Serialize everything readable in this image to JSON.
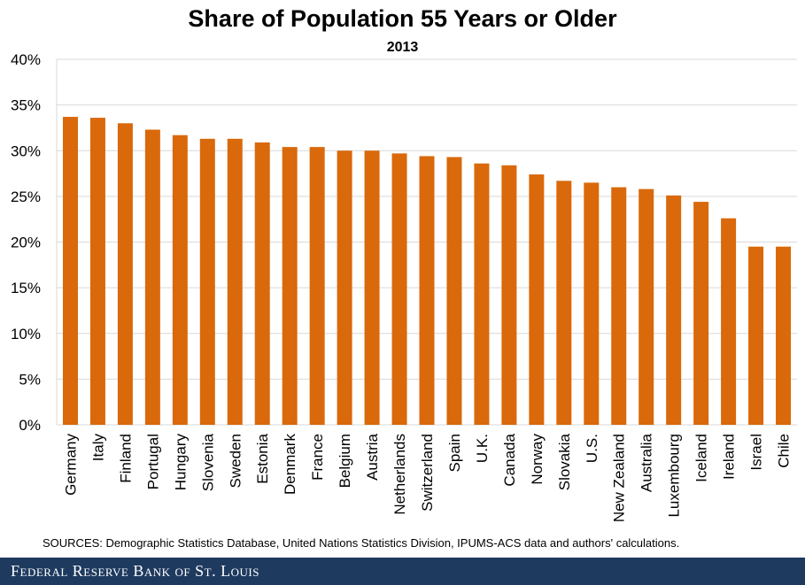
{
  "chart_data": {
    "type": "bar",
    "title": "Share of Population 55 Years or Older",
    "subtitle": "2013",
    "xlabel": "",
    "ylabel": "",
    "ylim": [
      0,
      40
    ],
    "yticks": [
      "0%",
      "5%",
      "10%",
      "15%",
      "20%",
      "25%",
      "30%",
      "35%",
      "40%"
    ],
    "grid": true,
    "categories": [
      "Germany",
      "Italy",
      "Finland",
      "Portugal",
      "Hungary",
      "Slovenia",
      "Sweden",
      "Estonia",
      "Denmark",
      "France",
      "Belgium",
      "Austria",
      "Netherlands",
      "Switzerland",
      "Spain",
      "U.K.",
      "Canada",
      "Norway",
      "Slovakia",
      "U.S.",
      "New Zealand",
      "Australia",
      "Luxembourg",
      "Iceland",
      "Ireland",
      "Israel",
      "Chile"
    ],
    "values": [
      33.7,
      33.6,
      33.0,
      32.3,
      31.7,
      31.3,
      31.3,
      30.9,
      30.4,
      30.4,
      30.0,
      30.0,
      29.7,
      29.4,
      29.3,
      28.6,
      28.4,
      27.4,
      26.7,
      26.5,
      26.0,
      25.8,
      25.1,
      24.4,
      22.6,
      19.5,
      19.5
    ],
    "bar_color": "#d9690b"
  },
  "source": "SOURCES: Demographic Statistics Database, United Nations Statistics Division, IPUMS-ACS data and authors' calculations.",
  "footer": {
    "brand": "Federal Reserve Bank of St. Louis",
    "color": "#1e3a5f"
  }
}
